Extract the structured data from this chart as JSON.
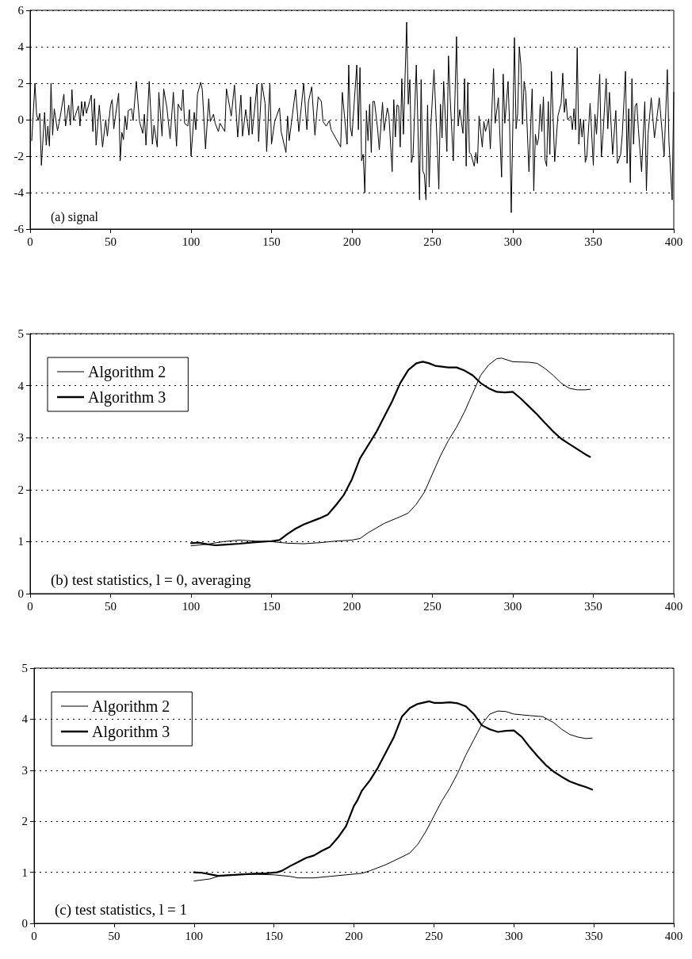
{
  "chart_data": [
    {
      "type": "line",
      "annotations": [
        "(a) signal"
      ],
      "xlim": [
        0,
        400
      ],
      "xticks": [
        0,
        50,
        100,
        150,
        200,
        250,
        300,
        350,
        400
      ],
      "ylim": [
        -6,
        6
      ],
      "yticks": [
        -6,
        -4,
        -2,
        0,
        2,
        4,
        6
      ],
      "grid": "y",
      "legend": false,
      "marker": "none",
      "line_style": "solid",
      "series": [
        {
          "color": "#000000",
          "x": [
            1,
            3,
            4,
            5,
            6,
            7,
            9,
            10,
            11,
            12,
            13,
            14,
            15,
            17,
            18,
            21,
            22,
            24,
            25,
            26,
            27,
            30,
            31,
            32,
            33,
            34,
            35,
            38,
            39,
            40,
            41,
            43,
            45,
            47,
            48,
            50,
            51,
            52,
            55,
            56,
            57,
            58,
            59,
            60,
            61,
            63,
            64,
            66,
            68,
            70,
            71,
            72,
            74,
            76,
            77,
            79,
            80,
            82,
            83,
            85,
            87,
            89,
            91,
            92,
            94,
            95,
            96,
            98,
            99,
            100,
            102,
            103,
            104,
            106,
            107,
            109,
            111,
            112,
            114,
            115,
            117,
            118,
            121,
            122,
            125,
            127,
            129,
            131,
            132,
            134,
            136,
            137,
            138,
            141,
            142,
            144,
            146,
            147,
            149,
            150,
            152,
            155,
            156,
            159,
            160,
            161,
            163,
            165,
            167,
            170,
            172,
            173,
            175,
            177,
            179,
            181,
            182,
            184,
            186,
            187,
            193,
            194,
            197,
            198,
            199,
            200,
            203,
            204,
            205,
            206,
            207,
            208,
            209,
            210,
            211,
            212,
            213,
            214,
            216,
            217,
            219,
            220,
            222,
            223,
            225,
            226,
            227,
            228,
            229,
            230,
            231,
            232,
            234,
            235,
            236,
            237,
            238,
            240,
            241,
            242,
            243,
            244,
            245,
            246,
            247,
            248,
            249,
            251,
            253,
            254,
            255,
            256,
            257,
            259,
            260,
            261,
            263,
            265,
            266,
            267,
            269,
            270,
            271,
            272,
            273,
            274,
            276,
            277,
            278,
            279,
            281,
            282,
            283,
            285,
            286,
            288,
            289,
            291,
            293,
            294,
            295,
            297,
            298,
            299,
            301,
            302,
            303,
            304,
            305,
            306,
            307,
            308,
            310,
            312,
            313,
            314,
            315,
            316,
            317,
            318,
            319,
            320,
            321,
            322,
            323,
            324,
            326,
            328,
            330,
            331,
            332,
            333,
            334,
            336,
            337,
            338,
            339,
            340,
            341,
            342,
            343,
            344,
            345,
            346,
            348,
            350,
            351,
            352,
            354,
            355,
            356,
            358,
            359,
            360,
            362,
            364,
            365,
            367,
            368,
            370,
            371,
            372,
            373,
            374,
            375,
            376,
            377,
            378,
            380,
            382,
            383,
            384,
            386,
            388,
            391,
            394,
            396,
            397,
            399,
            400
          ],
          "values": [
            -1.15,
            2,
            0.3,
            -0.05,
            0.35,
            -2.5,
            0.4,
            -1.4,
            -0.35,
            -1.45,
            2,
            -0.85,
            0.6,
            -0.6,
            -0.2,
            1.4,
            -0.35,
            0.8,
            -0.3,
            1.65,
            -0.05,
            0.75,
            -0.35,
            1,
            0.2,
            1,
            0.35,
            1.35,
            -0.65,
            1.15,
            -1.4,
            0.8,
            -1.5,
            0,
            -0.9,
            0.8,
            1.1,
            -0.5,
            1.45,
            -2.25,
            -0.7,
            -1.1,
            0.2,
            -0.55,
            0.5,
            0.6,
            -0.05,
            2.1,
            -0.1,
            -0.75,
            0.3,
            -1.4,
            2.1,
            -1.35,
            -0.3,
            -1.5,
            1.5,
            -0.9,
            1.7,
            0.65,
            -1.05,
            1.5,
            -1.45,
            0.85,
            0.5,
            1.65,
            -0.2,
            -0.35,
            0.55,
            -2,
            0.4,
            -0.55,
            1.4,
            2.05,
            1.65,
            -1.6,
            1.15,
            -0.1,
            0.3,
            -0.2,
            -0.65,
            -0.2,
            -0.65,
            1.7,
            0.2,
            1.9,
            -0.95,
            1.35,
            -0.9,
            0.55,
            -0.85,
            1.25,
            -0.8,
            1.95,
            -1.2,
            2,
            0.9,
            -1.75,
            2,
            -1.35,
            -0.1,
            0.65,
            -0.65,
            -1.8,
            0.2,
            -1.15,
            0.25,
            1.65,
            -0.65,
            2,
            -0.55,
            1,
            1.8,
            -0.85,
            1.25,
            1,
            -0.1,
            -0.35,
            -0.05,
            -0.55,
            -1.5,
            1.5,
            -1.35,
            3,
            -0.4,
            -0.9,
            3,
            -0.55,
            2.85,
            -2.25,
            -1.9,
            -4,
            0.5,
            -1.15,
            0.85,
            -1.8,
            1,
            1,
            -0.55,
            -1.65,
            0.95,
            -0.6,
            0.65,
            0.2,
            -2.85,
            1.1,
            -0.95,
            0.8,
            0.75,
            -1.5,
            2.25,
            -0.8,
            5.35,
            0.85,
            2.2,
            -2.35,
            -1.9,
            3,
            -0.3,
            -4.4,
            2.2,
            -2.8,
            -3,
            -4.4,
            0.8,
            -3.7,
            -0.4,
            2.75,
            -1.4,
            -3.8,
            0.85,
            -1,
            2.1,
            -1.75,
            3.5,
            1.25,
            -2.25,
            4.55,
            -0.35,
            0.55,
            -0.75,
            2.25,
            -2.55,
            2.05,
            -1.8,
            -1.9,
            -2.55,
            -1.8,
            -2.4,
            0.2,
            -1.5,
            -0.1,
            -0.65,
            0.05,
            -1.6,
            2.8,
            -0.2,
            1.2,
            -3.15,
            2.5,
            -0.2,
            2.1,
            -0.3,
            -5.1,
            4.5,
            -0.5,
            0.35,
            4,
            3,
            -0.25,
            2.1,
            1.5,
            -2.85,
            1.7,
            -3.9,
            -0.8,
            -1.4,
            -1,
            0.85,
            -0.65,
            1.25,
            -2.2,
            -2.55,
            1,
            -1.9,
            2.65,
            -2.3,
            0.2,
            0.9,
            2.55,
            0.4,
            1.15,
            0,
            0.2,
            -0.55,
            0.6,
            -0.55,
            3.95,
            -1.35,
            0.05,
            -0.95,
            0,
            -2.35,
            -2,
            0.9,
            -2.5,
            0.3,
            -0.8,
            2.5,
            -2.05,
            -0.85,
            2.25,
            -0.5,
            1.5,
            -1.9,
            0.5,
            -2.4,
            -1.9,
            -0.8,
            2.65,
            -2.4,
            0.6,
            -3.45,
            2.25,
            -1.35,
            0.75,
            0.9,
            -0.5,
            -2.85,
            1,
            -3.9,
            -0.8,
            1.2,
            -1,
            1.2,
            -2,
            2.75,
            -1.2,
            -4.4,
            1.5
          ]
        }
      ]
    },
    {
      "type": "line",
      "annotations": [
        "(b) test statistics, l = 0, averaging"
      ],
      "xlim": [
        0,
        400
      ],
      "xticks": [
        0,
        50,
        100,
        150,
        200,
        250,
        300,
        350,
        400
      ],
      "ylim": [
        0,
        5
      ],
      "yticks": [
        0,
        1,
        2,
        3,
        4,
        5
      ],
      "grid": "y",
      "legend": "top left",
      "marker": "none",
      "line_style": "solid",
      "series": [
        {
          "name": "Algorithm 2",
          "color": "#000000",
          "x": [
            100,
            110,
            120,
            130,
            140,
            150,
            160,
            170,
            180,
            190,
            200,
            205,
            210,
            220,
            230,
            235,
            240,
            245,
            250,
            255,
            260,
            265,
            270,
            275,
            280,
            285,
            290,
            293,
            300,
            310,
            315,
            320,
            325,
            330,
            335,
            340,
            345,
            348
          ],
          "values": [
            0.92,
            0.95,
            1.0,
            1.03,
            1.01,
            1.0,
            0.97,
            0.96,
            0.98,
            1.01,
            1.03,
            1.06,
            1.17,
            1.35,
            1.48,
            1.55,
            1.72,
            1.95,
            2.3,
            2.65,
            2.95,
            3.2,
            3.5,
            3.85,
            4.2,
            4.4,
            4.52,
            4.53,
            4.46,
            4.45,
            4.43,
            4.33,
            4.2,
            4.05,
            3.95,
            3.92,
            3.92,
            3.93
          ]
        },
        {
          "name": "Algorithm 3",
          "color": "#000000",
          "x": [
            100,
            105,
            110,
            115,
            120,
            130,
            140,
            150,
            155,
            160,
            165,
            170,
            180,
            185,
            190,
            195,
            200,
            205,
            210,
            215,
            220,
            225,
            230,
            235,
            240,
            244,
            248,
            252,
            260,
            265,
            270,
            275,
            280,
            285,
            290,
            295,
            300,
            305,
            310,
            315,
            320,
            325,
            330,
            335,
            340,
            345,
            348
          ],
          "values": [
            0.97,
            0.98,
            0.95,
            0.93,
            0.94,
            0.96,
            0.99,
            1.01,
            1.03,
            1.15,
            1.25,
            1.33,
            1.45,
            1.52,
            1.7,
            1.9,
            2.2,
            2.6,
            2.85,
            3.1,
            3.4,
            3.7,
            4.05,
            4.3,
            4.43,
            4.46,
            4.43,
            4.38,
            4.35,
            4.35,
            4.29,
            4.2,
            4.05,
            3.95,
            3.88,
            3.87,
            3.88,
            3.75,
            3.6,
            3.45,
            3.28,
            3.12,
            2.98,
            2.88,
            2.78,
            2.68,
            2.63
          ]
        }
      ]
    },
    {
      "type": "line",
      "annotations": [
        "(c) test statistics, l = 1"
      ],
      "xlim": [
        0,
        400
      ],
      "xticks": [
        0,
        50,
        100,
        150,
        200,
        250,
        300,
        350,
        400
      ],
      "ylim": [
        0,
        5
      ],
      "yticks": [
        0,
        1,
        2,
        3,
        4,
        5
      ],
      "grid": "y",
      "legend": "top left",
      "marker": "none",
      "line_style": "solid",
      "series": [
        {
          "name": "Algorithm 2",
          "color": "#000000",
          "x": [
            100,
            110,
            115,
            120,
            130,
            140,
            150,
            160,
            165,
            175,
            185,
            195,
            205,
            210,
            220,
            230,
            235,
            240,
            245,
            250,
            255,
            260,
            265,
            270,
            275,
            280,
            285,
            290,
            295,
            300,
            310,
            318,
            325,
            330,
            335,
            340,
            345,
            349
          ],
          "values": [
            0.83,
            0.87,
            0.92,
            0.94,
            0.96,
            0.96,
            0.95,
            0.92,
            0.89,
            0.89,
            0.92,
            0.95,
            0.98,
            1.03,
            1.15,
            1.3,
            1.38,
            1.55,
            1.8,
            2.1,
            2.4,
            2.65,
            2.95,
            3.3,
            3.6,
            3.9,
            4.1,
            4.16,
            4.15,
            4.1,
            4.07,
            4.05,
            3.93,
            3.8,
            3.7,
            3.65,
            3.62,
            3.63
          ]
        },
        {
          "name": "Algorithm 3",
          "color": "#000000",
          "x": [
            100,
            105,
            110,
            115,
            125,
            135,
            145,
            152,
            155,
            160,
            165,
            170,
            175,
            180,
            185,
            190,
            195,
            200,
            202,
            205,
            210,
            215,
            220,
            225,
            230,
            235,
            240,
            247,
            250,
            255,
            260,
            265,
            270,
            275,
            280,
            285,
            290,
            295,
            300,
            305,
            310,
            315,
            320,
            325,
            330,
            335,
            340,
            345,
            349
          ],
          "values": [
            1.0,
            0.99,
            0.96,
            0.93,
            0.95,
            0.97,
            0.98,
            1.0,
            1.03,
            1.12,
            1.2,
            1.28,
            1.33,
            1.42,
            1.5,
            1.68,
            1.9,
            2.3,
            2.4,
            2.6,
            2.8,
            3.05,
            3.35,
            3.65,
            4.05,
            4.22,
            4.3,
            4.35,
            4.32,
            4.32,
            4.33,
            4.31,
            4.25,
            4.1,
            3.88,
            3.8,
            3.75,
            3.77,
            3.78,
            3.65,
            3.45,
            3.27,
            3.1,
            2.97,
            2.87,
            2.78,
            2.72,
            2.67,
            2.62
          ]
        }
      ]
    }
  ]
}
